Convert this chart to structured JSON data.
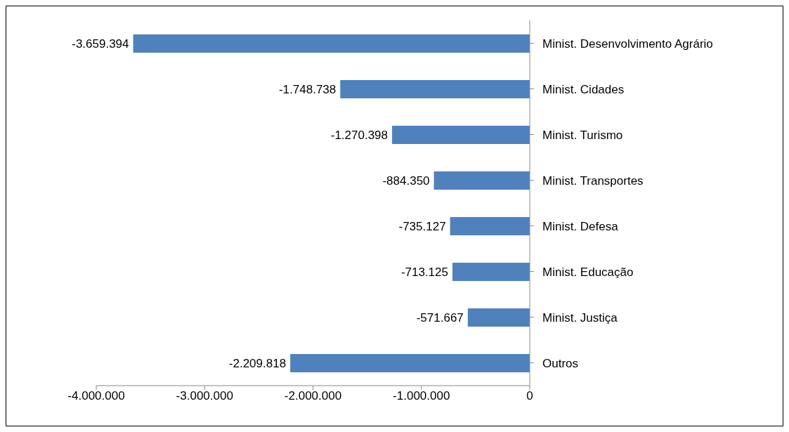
{
  "chart_data": {
    "type": "bar",
    "orientation": "horizontal",
    "categories": [
      "Minist. Desenvolvimento Agrário",
      "Minist. Cidades",
      "Minist. Turismo",
      "Minist. Transportes",
      "Minist. Defesa",
      "Minist. Educação",
      "Minist. Justiça",
      "Outros"
    ],
    "values": [
      -3659394,
      -1748738,
      -1270398,
      -884350,
      -735127,
      -713125,
      -571667,
      -2209818
    ],
    "value_labels": [
      "-3.659.394",
      "-1.748.738",
      "-1.270.398",
      "-884.350",
      "-735.127",
      "-713.125",
      "-571.667",
      "-2.209.818"
    ],
    "color": "#4f81bd",
    "xlim": [
      -4000000,
      0
    ],
    "xticks": [
      {
        "value": -4000000,
        "label": "-4.000.000"
      },
      {
        "value": -3000000,
        "label": "-3.000.000"
      },
      {
        "value": -2000000,
        "label": "-2.000.000"
      },
      {
        "value": -1000000,
        "label": "-1.000.000"
      },
      0
    ],
    "grid": false,
    "legend": false
  }
}
